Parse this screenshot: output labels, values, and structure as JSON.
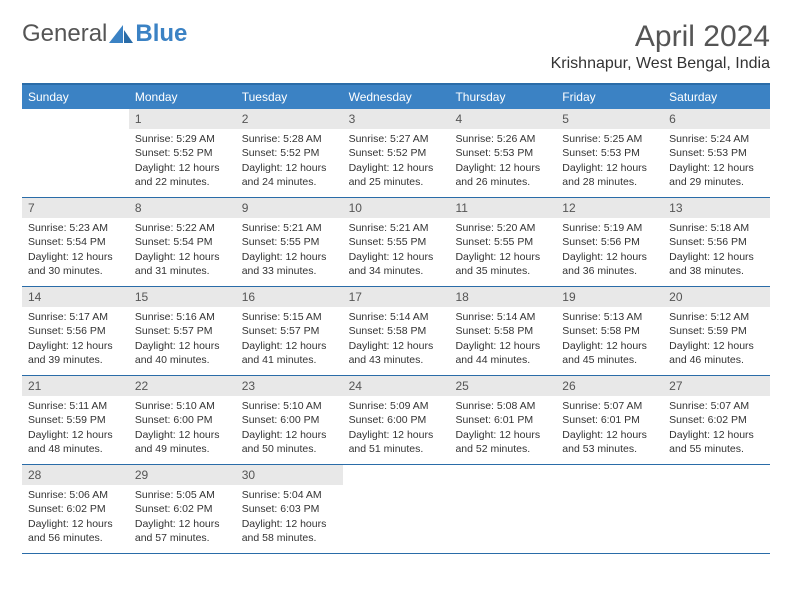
{
  "logo": {
    "text1": "General",
    "text2": "Blue"
  },
  "title": "April 2024",
  "location": "Krishnapur, West Bengal, India",
  "colors": {
    "header_bg": "#3b82c4",
    "border": "#2a6ca8",
    "daynum_bg": "#e8e8e8",
    "text": "#333333"
  },
  "dayNames": [
    "Sunday",
    "Monday",
    "Tuesday",
    "Wednesday",
    "Thursday",
    "Friday",
    "Saturday"
  ],
  "weeks": [
    [
      {
        "n": "",
        "empty": true
      },
      {
        "n": "1",
        "sr": "Sunrise: 5:29 AM",
        "ss": "Sunset: 5:52 PM",
        "dl": "Daylight: 12 hours and 22 minutes."
      },
      {
        "n": "2",
        "sr": "Sunrise: 5:28 AM",
        "ss": "Sunset: 5:52 PM",
        "dl": "Daylight: 12 hours and 24 minutes."
      },
      {
        "n": "3",
        "sr": "Sunrise: 5:27 AM",
        "ss": "Sunset: 5:52 PM",
        "dl": "Daylight: 12 hours and 25 minutes."
      },
      {
        "n": "4",
        "sr": "Sunrise: 5:26 AM",
        "ss": "Sunset: 5:53 PM",
        "dl": "Daylight: 12 hours and 26 minutes."
      },
      {
        "n": "5",
        "sr": "Sunrise: 5:25 AM",
        "ss": "Sunset: 5:53 PM",
        "dl": "Daylight: 12 hours and 28 minutes."
      },
      {
        "n": "6",
        "sr": "Sunrise: 5:24 AM",
        "ss": "Sunset: 5:53 PM",
        "dl": "Daylight: 12 hours and 29 minutes."
      }
    ],
    [
      {
        "n": "7",
        "sr": "Sunrise: 5:23 AM",
        "ss": "Sunset: 5:54 PM",
        "dl": "Daylight: 12 hours and 30 minutes."
      },
      {
        "n": "8",
        "sr": "Sunrise: 5:22 AM",
        "ss": "Sunset: 5:54 PM",
        "dl": "Daylight: 12 hours and 31 minutes."
      },
      {
        "n": "9",
        "sr": "Sunrise: 5:21 AM",
        "ss": "Sunset: 5:55 PM",
        "dl": "Daylight: 12 hours and 33 minutes."
      },
      {
        "n": "10",
        "sr": "Sunrise: 5:21 AM",
        "ss": "Sunset: 5:55 PM",
        "dl": "Daylight: 12 hours and 34 minutes."
      },
      {
        "n": "11",
        "sr": "Sunrise: 5:20 AM",
        "ss": "Sunset: 5:55 PM",
        "dl": "Daylight: 12 hours and 35 minutes."
      },
      {
        "n": "12",
        "sr": "Sunrise: 5:19 AM",
        "ss": "Sunset: 5:56 PM",
        "dl": "Daylight: 12 hours and 36 minutes."
      },
      {
        "n": "13",
        "sr": "Sunrise: 5:18 AM",
        "ss": "Sunset: 5:56 PM",
        "dl": "Daylight: 12 hours and 38 minutes."
      }
    ],
    [
      {
        "n": "14",
        "sr": "Sunrise: 5:17 AM",
        "ss": "Sunset: 5:56 PM",
        "dl": "Daylight: 12 hours and 39 minutes."
      },
      {
        "n": "15",
        "sr": "Sunrise: 5:16 AM",
        "ss": "Sunset: 5:57 PM",
        "dl": "Daylight: 12 hours and 40 minutes."
      },
      {
        "n": "16",
        "sr": "Sunrise: 5:15 AM",
        "ss": "Sunset: 5:57 PM",
        "dl": "Daylight: 12 hours and 41 minutes."
      },
      {
        "n": "17",
        "sr": "Sunrise: 5:14 AM",
        "ss": "Sunset: 5:58 PM",
        "dl": "Daylight: 12 hours and 43 minutes."
      },
      {
        "n": "18",
        "sr": "Sunrise: 5:14 AM",
        "ss": "Sunset: 5:58 PM",
        "dl": "Daylight: 12 hours and 44 minutes."
      },
      {
        "n": "19",
        "sr": "Sunrise: 5:13 AM",
        "ss": "Sunset: 5:58 PM",
        "dl": "Daylight: 12 hours and 45 minutes."
      },
      {
        "n": "20",
        "sr": "Sunrise: 5:12 AM",
        "ss": "Sunset: 5:59 PM",
        "dl": "Daylight: 12 hours and 46 minutes."
      }
    ],
    [
      {
        "n": "21",
        "sr": "Sunrise: 5:11 AM",
        "ss": "Sunset: 5:59 PM",
        "dl": "Daylight: 12 hours and 48 minutes."
      },
      {
        "n": "22",
        "sr": "Sunrise: 5:10 AM",
        "ss": "Sunset: 6:00 PM",
        "dl": "Daylight: 12 hours and 49 minutes."
      },
      {
        "n": "23",
        "sr": "Sunrise: 5:10 AM",
        "ss": "Sunset: 6:00 PM",
        "dl": "Daylight: 12 hours and 50 minutes."
      },
      {
        "n": "24",
        "sr": "Sunrise: 5:09 AM",
        "ss": "Sunset: 6:00 PM",
        "dl": "Daylight: 12 hours and 51 minutes."
      },
      {
        "n": "25",
        "sr": "Sunrise: 5:08 AM",
        "ss": "Sunset: 6:01 PM",
        "dl": "Daylight: 12 hours and 52 minutes."
      },
      {
        "n": "26",
        "sr": "Sunrise: 5:07 AM",
        "ss": "Sunset: 6:01 PM",
        "dl": "Daylight: 12 hours and 53 minutes."
      },
      {
        "n": "27",
        "sr": "Sunrise: 5:07 AM",
        "ss": "Sunset: 6:02 PM",
        "dl": "Daylight: 12 hours and 55 minutes."
      }
    ],
    [
      {
        "n": "28",
        "sr": "Sunrise: 5:06 AM",
        "ss": "Sunset: 6:02 PM",
        "dl": "Daylight: 12 hours and 56 minutes."
      },
      {
        "n": "29",
        "sr": "Sunrise: 5:05 AM",
        "ss": "Sunset: 6:02 PM",
        "dl": "Daylight: 12 hours and 57 minutes."
      },
      {
        "n": "30",
        "sr": "Sunrise: 5:04 AM",
        "ss": "Sunset: 6:03 PM",
        "dl": "Daylight: 12 hours and 58 minutes."
      },
      {
        "n": "",
        "empty": true
      },
      {
        "n": "",
        "empty": true
      },
      {
        "n": "",
        "empty": true
      },
      {
        "n": "",
        "empty": true
      }
    ]
  ]
}
